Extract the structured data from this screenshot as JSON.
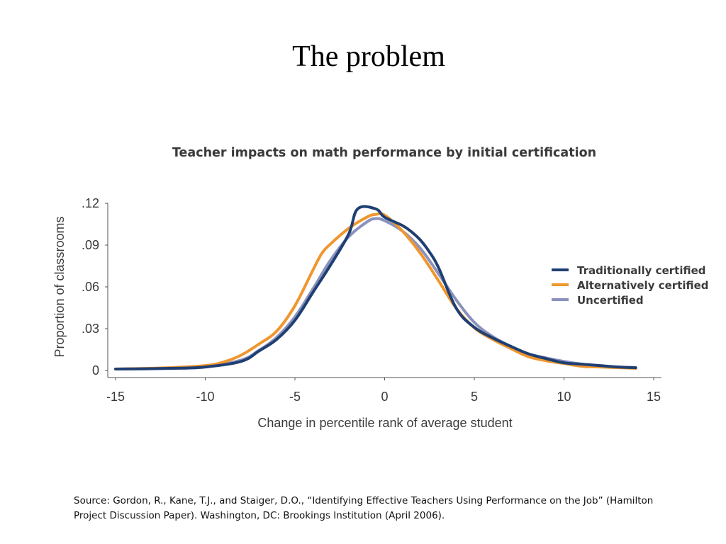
{
  "slide": {
    "title": "The problem",
    "source": "Source: Gordon, R., Kane, T.J., and Staiger, D.O., “Identifying Effective Teachers Using Performance on the Job” (Hamilton Project Discussion Paper). Washington, DC: Brookings Institution (April 2006)."
  },
  "chart_data": {
    "type": "line",
    "title": "Teacher impacts on math performance by initial certification",
    "xlabel": "Change in percentile rank of average student",
    "ylabel": "Proportion of classrooms",
    "xlim": [
      -15,
      15
    ],
    "ylim": [
      0,
      0.12
    ],
    "xticks": [
      -15,
      -10,
      -5,
      0,
      5,
      10,
      15
    ],
    "xtick_labels": [
      "-15",
      "-10",
      "-5",
      "0",
      "5",
      "10",
      "15"
    ],
    "yticks": [
      0,
      0.03,
      0.06,
      0.09,
      0.12
    ],
    "ytick_labels": [
      "0",
      ".03",
      ".06",
      ".09",
      ".12"
    ],
    "grid": false,
    "legend_position": "right",
    "series": [
      {
        "name": "Traditionally certified",
        "color": "#1f3f73",
        "x": [
          -15,
          -12,
          -10,
          -8,
          -7,
          -6,
          -5,
          -4,
          -3,
          -2,
          -1.5,
          -0.5,
          0,
          1,
          1.5,
          2,
          2.5,
          3,
          4,
          5,
          6,
          7,
          8,
          9,
          10,
          11,
          12,
          13,
          14
        ],
        "y": [
          0.001,
          0.0015,
          0.0025,
          0.0065,
          0.014,
          0.0225,
          0.036,
          0.056,
          0.076,
          0.098,
          0.116,
          0.116,
          0.11,
          0.104,
          0.0995,
          0.0935,
          0.085,
          0.074,
          0.0445,
          0.031,
          0.0235,
          0.0175,
          0.012,
          0.0085,
          0.0055,
          0.0045,
          0.0035,
          0.0025,
          0.002
        ]
      },
      {
        "name": "Alternatively certified",
        "color": "#f0962e",
        "x": [
          -15,
          -12,
          -10,
          -9,
          -8,
          -7,
          -6,
          -5,
          -4,
          -3.5,
          -3,
          -2,
          -1,
          -0.5,
          0,
          1,
          2,
          3,
          4,
          5,
          6,
          7,
          8,
          9,
          10,
          11,
          12,
          14
        ],
        "y": [
          0.001,
          0.002,
          0.0035,
          0.006,
          0.011,
          0.019,
          0.0285,
          0.0465,
          0.072,
          0.084,
          0.091,
          0.102,
          0.11,
          0.112,
          0.1115,
          0.1,
          0.084,
          0.0645,
          0.0445,
          0.0305,
          0.0225,
          0.016,
          0.01,
          0.007,
          0.005,
          0.003,
          0.0025,
          0.0015
        ]
      },
      {
        "name": "Uncertified",
        "color": "#8a92bd",
        "x": [
          -15,
          -12,
          -10,
          -8,
          -7,
          -6,
          -5,
          -4,
          -3,
          -2,
          -1,
          -0.5,
          0,
          1,
          2,
          3,
          4,
          5,
          6,
          7,
          8,
          9,
          10,
          11,
          12,
          13,
          14
        ],
        "y": [
          0.001,
          0.0015,
          0.0025,
          0.0075,
          0.0145,
          0.024,
          0.0385,
          0.0585,
          0.0795,
          0.096,
          0.1065,
          0.109,
          0.1075,
          0.1,
          0.0875,
          0.0695,
          0.0505,
          0.0345,
          0.0245,
          0.0175,
          0.012,
          0.009,
          0.0065,
          0.0045,
          0.003,
          0.0025,
          0.002
        ]
      }
    ]
  }
}
